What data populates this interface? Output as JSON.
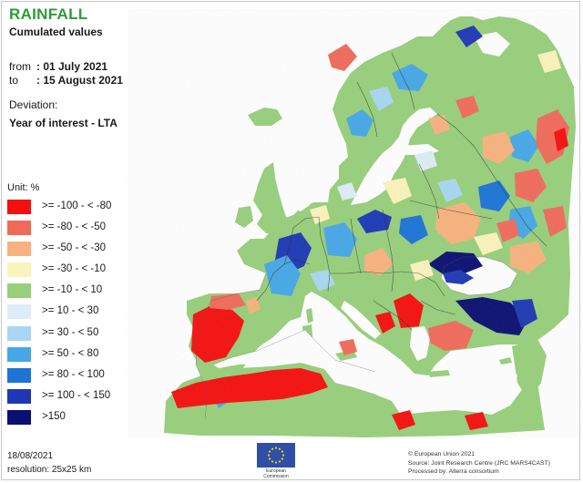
{
  "title": "RAINFALL",
  "subtitle": "Cumulated values",
  "period": {
    "from_label": "from",
    "from_value": ": 01 July 2021",
    "to_label": "to",
    "to_value": ": 15 August 2021"
  },
  "deviation_label": "Deviation:",
  "deviation_value": "Year of interest - LTA",
  "unit_label": "Unit:  %",
  "legend": [
    {
      "label": ">= -100 - < -80",
      "color": "#f50f0f"
    },
    {
      "label": ">= -80 - < -50",
      "color": "#f06a5a"
    },
    {
      "label": ">= -50 - < -30",
      "color": "#f7b27e"
    },
    {
      "label": ">= -30 - < -10",
      "color": "#fbf3bc"
    },
    {
      "label": ">= -10 - < 10",
      "color": "#97cf7b"
    },
    {
      "label": ">= 10 - < 30",
      "color": "#dcedf8"
    },
    {
      "label": ">= 30 - < 50",
      "color": "#a9d6f2"
    },
    {
      "label": ">= 50 - < 80",
      "color": "#46a7e6"
    },
    {
      "label": ">= 80 - < 100",
      "color": "#1b74d6"
    },
    {
      "label": ">= 100 - < 150",
      "color": "#1d38b4"
    },
    {
      "label": ">150",
      "color": "#0a0f72"
    }
  ],
  "date": "18/08/2021",
  "resolution": "resolution:  25x25 km",
  "eu_caption": "European Commission",
  "credits": [
    "© European Union 2021",
    "Source: Joint Research Centre (JRC MARS4CAST)",
    "Processed by: Alterra consortium"
  ],
  "colors": {
    "title": "#2e9a3a",
    "sea": "#ffffff",
    "eu_flag": "#2f4fa6",
    "eu_stars": "#ffd617",
    "borders": "#333333"
  }
}
